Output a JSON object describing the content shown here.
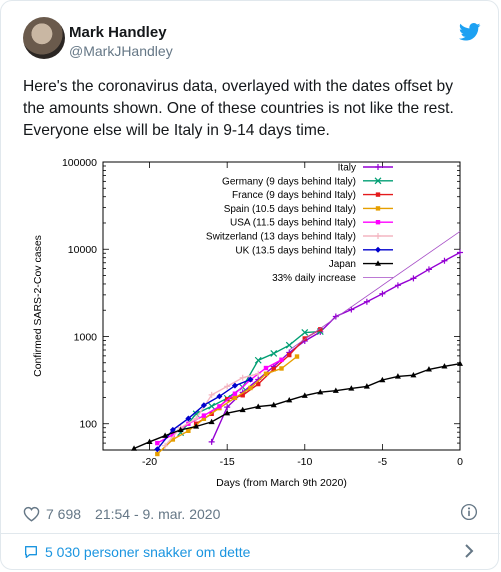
{
  "author": {
    "name": "Mark Handley",
    "handle": "@MarkJHandley"
  },
  "tweet": {
    "lines": [
      "Here's the coronavirus data, overlayed with the dates offset by",
      "the amounts shown.  One of these countries is not like the rest.",
      "Everyone else will be Italy in 9-14 days time."
    ]
  },
  "footer": {
    "likes": "7 698",
    "time": "21:54 - 9. mar. 2020",
    "replies": "5 030 personer snakker om dette"
  },
  "colors": {
    "accent": "#1da1f2",
    "link": "#1b95e0",
    "muted": "#657786"
  },
  "icons": {
    "bird": "twitter-bird-icon",
    "heart": "heart-icon",
    "info": "info-icon",
    "reply": "comment-bubble-icon",
    "chevron": "chevron-right-icon"
  },
  "chart_data": {
    "type": "line",
    "xlabel": "Days (from March 9th 2020)",
    "ylabel": "Confirmed SARS-2-Cov cases",
    "xlim": [
      -23,
      0
    ],
    "ylim": [
      50,
      100000
    ],
    "yscale": "log",
    "grid": false,
    "legend_position": "top-right",
    "x_ticks": [
      -20,
      -15,
      -10,
      -5,
      0
    ],
    "x_tick_labels": [
      "-20",
      "-15",
      "-10",
      "-5",
      "0"
    ],
    "y_ticks": [
      100,
      1000,
      10000,
      100000
    ],
    "y_tick_labels": [
      "100",
      "1000",
      "10000",
      "100000"
    ],
    "series": [
      {
        "name": "Italy",
        "color": "#9400d3",
        "marker": "plus",
        "x": [
          -16,
          -15,
          -14,
          -13,
          -12,
          -11,
          -10,
          -9,
          -8,
          -7,
          -6,
          -5,
          -4,
          -3,
          -2,
          -1,
          0
        ],
        "y": [
          62,
          155,
          229,
          322,
          453,
          655,
          888,
          1128,
          1694,
          2036,
          2502,
          3089,
          3858,
          4636,
          5883,
          7375,
          9172
        ]
      },
      {
        "name": "Germany (9 days behind Italy)",
        "color": "#009e73",
        "marker": "x",
        "x": [
          -18,
          -17,
          -16,
          -15,
          -14,
          -13,
          -12,
          -11,
          -10,
          -9
        ],
        "y": [
          79,
          130,
          159,
          196,
          262,
          534,
          639,
          795,
          1112,
          1139
        ]
      },
      {
        "name": "France (9 days behind Italy)",
        "color": "#e41a1c",
        "marker": "square",
        "x": [
          -17,
          -16,
          -15,
          -14,
          -13,
          -12,
          -11,
          -10,
          -9
        ],
        "y": [
          100,
          130,
          191,
          212,
          285,
          423,
          613,
          949,
          1209
        ]
      },
      {
        "name": "Spain (10.5 days behind Italy)",
        "color": "#e69f00",
        "marker": "square",
        "x": [
          -19.5,
          -18.5,
          -17.5,
          -16.5,
          -15.5,
          -14.5,
          -13.5,
          -12.5,
          -11.5,
          -10.5
        ],
        "y": [
          45,
          66,
          83,
          114,
          151,
          198,
          257,
          374,
          430,
          589
        ]
      },
      {
        "name": "USA (11.5 days behind Italy)",
        "color": "#ff00ff",
        "marker": "square",
        "x": [
          -19.5,
          -18.5,
          -17.5,
          -16.5,
          -15.5,
          -14.5,
          -13.5,
          -12.5,
          -11.5
        ],
        "y": [
          60,
          75,
          100,
          124,
          158,
          221,
          319,
          435,
          541
        ]
      },
      {
        "name": "Switzerland (13 days behind Italy)",
        "color": "#f4b6c2",
        "marker": "plus",
        "x": [
          -19,
          -18,
          -17,
          -16,
          -15,
          -14,
          -13
        ],
        "y": [
          56,
          90,
          114,
          214,
          268,
          337,
          374
        ]
      },
      {
        "name": "UK (13.5 days behind Italy)",
        "color": "#0000cd",
        "marker": "diamond",
        "x": [
          -19.5,
          -18.5,
          -17.5,
          -16.5,
          -15.5,
          -14.5,
          -13.5
        ],
        "y": [
          51,
          85,
          115,
          163,
          206,
          273,
          321
        ]
      },
      {
        "name": "Japan",
        "color": "#000000",
        "marker": "triangle",
        "x": [
          -21,
          -20,
          -19,
          -18,
          -17,
          -16,
          -15,
          -14,
          -13,
          -12,
          -11,
          -10,
          -9,
          -8,
          -7,
          -6,
          -5,
          -4,
          -3,
          -2,
          -1,
          0
        ],
        "y": [
          52,
          62,
          73,
          85,
          93,
          105,
          132,
          144,
          157,
          164,
          186,
          210,
          230,
          239,
          254,
          268,
          317,
          349,
          360,
          420,
          455,
          488
        ]
      },
      {
        "name": "33% daily increase",
        "color": "#a64dc6",
        "marker": "none",
        "style": "thin",
        "x": [
          -11,
          0
        ],
        "y": [
          700,
          16000
        ]
      }
    ]
  }
}
